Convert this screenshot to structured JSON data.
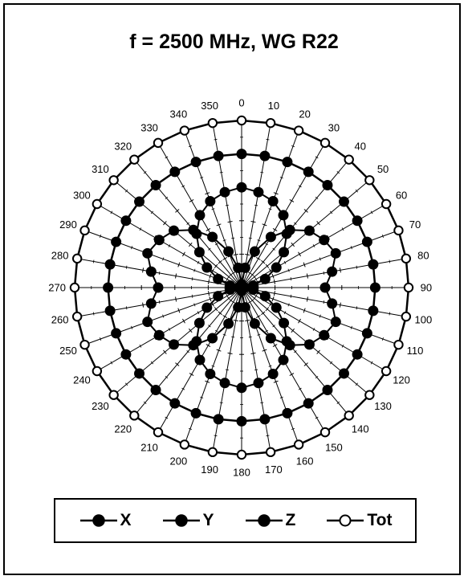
{
  "chart_data": {
    "type": "polar",
    "title": "f = 2500 MHz, WG R22",
    "angles": [
      0,
      10,
      20,
      30,
      40,
      50,
      60,
      70,
      80,
      90,
      100,
      110,
      120,
      130,
      140,
      150,
      160,
      170,
      180,
      190,
      200,
      210,
      220,
      230,
      240,
      250,
      260,
      270,
      280,
      290,
      300,
      310,
      320,
      330,
      340,
      350
    ],
    "angle_labels": [
      "0",
      "10",
      "20",
      "30",
      "40",
      "50",
      "60",
      "70",
      "80",
      "90",
      "100",
      "110",
      "120",
      "130",
      "140",
      "150",
      "160",
      "170",
      "180",
      "190",
      "200",
      "210",
      "220",
      "230",
      "240",
      "250",
      "260",
      "270",
      "280",
      "290",
      "300",
      "310",
      "320",
      "330",
      "340",
      "350"
    ],
    "rmax": 1.0,
    "grid_rings": [
      0.2,
      0.4,
      0.6,
      0.8,
      1.0
    ],
    "series": [
      {
        "name": "X",
        "marker": "filled-circle",
        "values": [
          0.02,
          0.12,
          0.23,
          0.35,
          0.45,
          0.53,
          0.57,
          0.6,
          0.55,
          0.5,
          0.55,
          0.6,
          0.57,
          0.53,
          0.45,
          0.35,
          0.23,
          0.12,
          0.02,
          0.12,
          0.23,
          0.35,
          0.45,
          0.53,
          0.57,
          0.6,
          0.55,
          0.5,
          0.55,
          0.6,
          0.57,
          0.53,
          0.45,
          0.35,
          0.23,
          0.12
        ]
      },
      {
        "name": "Y",
        "marker": "filled-circle",
        "values": [
          0.6,
          0.58,
          0.55,
          0.5,
          0.42,
          0.33,
          0.24,
          0.15,
          0.07,
          0.02,
          0.07,
          0.15,
          0.24,
          0.33,
          0.42,
          0.5,
          0.55,
          0.58,
          0.6,
          0.58,
          0.55,
          0.5,
          0.42,
          0.33,
          0.24,
          0.15,
          0.07,
          0.02,
          0.07,
          0.15,
          0.24,
          0.33,
          0.42,
          0.5,
          0.55,
          0.58
        ]
      },
      {
        "name": "Z",
        "marker": "filled-circle",
        "values": [
          0.8,
          0.8,
          0.8,
          0.8,
          0.8,
          0.8,
          0.8,
          0.8,
          0.8,
          0.8,
          0.8,
          0.8,
          0.8,
          0.8,
          0.8,
          0.8,
          0.8,
          0.8,
          0.8,
          0.8,
          0.8,
          0.8,
          0.8,
          0.8,
          0.8,
          0.8,
          0.8,
          0.8,
          0.8,
          0.8,
          0.8,
          0.8,
          0.8,
          0.8,
          0.8,
          0.8
        ]
      },
      {
        "name": "Tot",
        "marker": "open-circle",
        "values": [
          1,
          1,
          1,
          1,
          1,
          1,
          1,
          1,
          1,
          1,
          1,
          1,
          1,
          1,
          1,
          1,
          1,
          1,
          1,
          1,
          1,
          1,
          1,
          1,
          1,
          1,
          1,
          1,
          1,
          1,
          1,
          1,
          1,
          1,
          1,
          1
        ]
      }
    ],
    "legend": {
      "placement": "bottom",
      "entries": [
        "X",
        "Y",
        "Z",
        "Tot"
      ]
    },
    "grid": true
  }
}
